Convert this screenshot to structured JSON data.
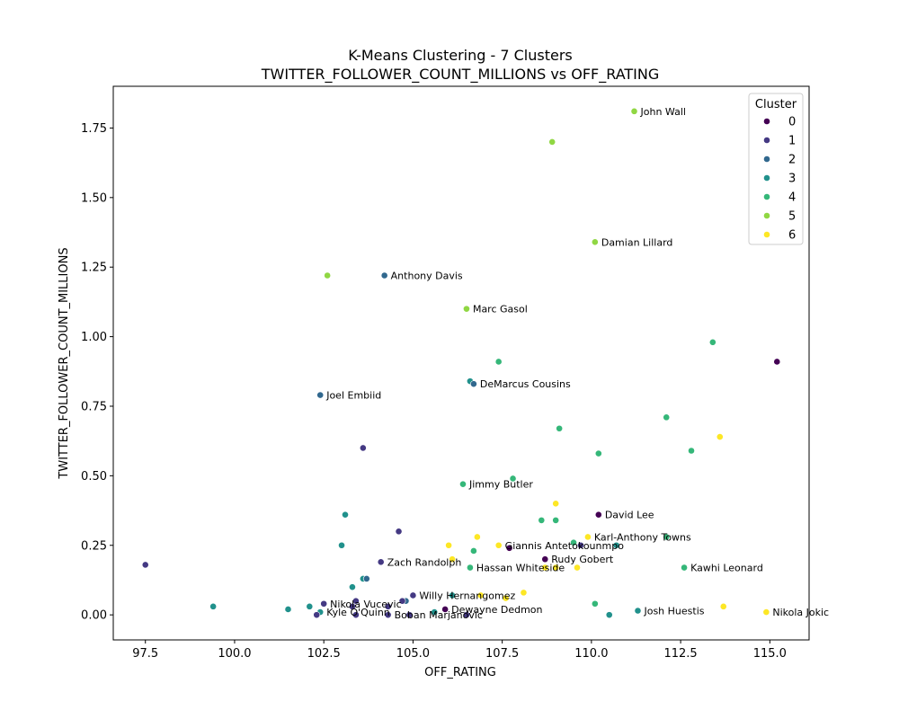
{
  "chart_data": {
    "type": "scatter",
    "title_line1": "K-Means Clustering - 7 Clusters",
    "title_line2": "TWITTER_FOLLOWER_COUNT_MILLIONS vs OFF_RATING",
    "xlabel": "OFF_RATING",
    "ylabel": "TWITTER_FOLLOWER_COUNT_MILLIONS",
    "xlim": [
      96.6,
      116.1
    ],
    "ylim": [
      -0.09,
      1.9
    ],
    "xticks": [
      97.5,
      100.0,
      102.5,
      105.0,
      107.5,
      110.0,
      112.5,
      115.0
    ],
    "xtick_labels": [
      "97.5",
      "100.0",
      "102.5",
      "105.0",
      "107.5",
      "110.0",
      "112.5",
      "115.0"
    ],
    "yticks": [
      0.0,
      0.25,
      0.5,
      0.75,
      1.0,
      1.25,
      1.5,
      1.75
    ],
    "ytick_labels": [
      "0.00",
      "0.25",
      "0.50",
      "0.75",
      "1.00",
      "1.25",
      "1.50",
      "1.75"
    ],
    "legend": {
      "title": "Cluster",
      "placement": "top-right",
      "entries": [
        {
          "label": "0",
          "color": "#440154"
        },
        {
          "label": "1",
          "color": "#443983"
        },
        {
          "label": "2",
          "color": "#31688e"
        },
        {
          "label": "3",
          "color": "#21918c"
        },
        {
          "label": "4",
          "color": "#35b779"
        },
        {
          "label": "5",
          "color": "#90d743"
        },
        {
          "label": "6",
          "color": "#fde725"
        }
      ]
    },
    "points": [
      {
        "x": 111.2,
        "y": 1.81,
        "cluster": 5,
        "label": "John Wall"
      },
      {
        "x": 108.9,
        "y": 1.7,
        "cluster": 5,
        "label": ""
      },
      {
        "x": 110.1,
        "y": 1.34,
        "cluster": 5,
        "label": "Damian Lillard"
      },
      {
        "x": 102.6,
        "y": 1.22,
        "cluster": 5,
        "label": ""
      },
      {
        "x": 104.2,
        "y": 1.22,
        "cluster": 2,
        "label": "Anthony Davis"
      },
      {
        "x": 106.5,
        "y": 1.1,
        "cluster": 5,
        "label": "Marc Gasol"
      },
      {
        "x": 113.4,
        "y": 0.98,
        "cluster": 4,
        "label": ""
      },
      {
        "x": 115.2,
        "y": 0.91,
        "cluster": 0,
        "label": ""
      },
      {
        "x": 107.4,
        "y": 0.91,
        "cluster": 4,
        "label": ""
      },
      {
        "x": 106.6,
        "y": 0.84,
        "cluster": 3,
        "label": ""
      },
      {
        "x": 106.7,
        "y": 0.83,
        "cluster": 2,
        "label": "DeMarcus Cousins"
      },
      {
        "x": 102.4,
        "y": 0.79,
        "cluster": 2,
        "label": "Joel Embiid"
      },
      {
        "x": 112.1,
        "y": 0.71,
        "cluster": 4,
        "label": ""
      },
      {
        "x": 109.1,
        "y": 0.67,
        "cluster": 4,
        "label": ""
      },
      {
        "x": 113.6,
        "y": 0.64,
        "cluster": 6,
        "label": ""
      },
      {
        "x": 103.6,
        "y": 0.6,
        "cluster": 1,
        "label": ""
      },
      {
        "x": 112.8,
        "y": 0.59,
        "cluster": 4,
        "label": ""
      },
      {
        "x": 110.2,
        "y": 0.58,
        "cluster": 4,
        "label": ""
      },
      {
        "x": 107.8,
        "y": 0.49,
        "cluster": 4,
        "label": ""
      },
      {
        "x": 106.4,
        "y": 0.47,
        "cluster": 4,
        "label": "Jimmy Butler"
      },
      {
        "x": 109.0,
        "y": 0.4,
        "cluster": 6,
        "label": ""
      },
      {
        "x": 103.1,
        "y": 0.36,
        "cluster": 3,
        "label": ""
      },
      {
        "x": 110.2,
        "y": 0.36,
        "cluster": 0,
        "label": "David Lee"
      },
      {
        "x": 108.6,
        "y": 0.34,
        "cluster": 4,
        "label": ""
      },
      {
        "x": 109.0,
        "y": 0.34,
        "cluster": 4,
        "label": ""
      },
      {
        "x": 104.6,
        "y": 0.3,
        "cluster": 1,
        "label": ""
      },
      {
        "x": 106.8,
        "y": 0.28,
        "cluster": 6,
        "label": ""
      },
      {
        "x": 109.9,
        "y": 0.28,
        "cluster": 6,
        "label": "Karl-Anthony Towns"
      },
      {
        "x": 112.1,
        "y": 0.28,
        "cluster": 4,
        "label": ""
      },
      {
        "x": 110.7,
        "y": 0.25,
        "cluster": 3,
        "label": ""
      },
      {
        "x": 109.5,
        "y": 0.26,
        "cluster": 4,
        "label": ""
      },
      {
        "x": 103.0,
        "y": 0.25,
        "cluster": 3,
        "label": ""
      },
      {
        "x": 106.0,
        "y": 0.25,
        "cluster": 6,
        "label": ""
      },
      {
        "x": 107.4,
        "y": 0.25,
        "cluster": 6,
        "label": "Giannis Antetokounmpo"
      },
      {
        "x": 109.7,
        "y": 0.25,
        "cluster": 1,
        "label": ""
      },
      {
        "x": 107.7,
        "y": 0.24,
        "cluster": 0,
        "label": ""
      },
      {
        "x": 106.7,
        "y": 0.23,
        "cluster": 4,
        "label": ""
      },
      {
        "x": 108.7,
        "y": 0.2,
        "cluster": 0,
        "label": "Rudy Gobert"
      },
      {
        "x": 97.5,
        "y": 0.18,
        "cluster": 1,
        "label": ""
      },
      {
        "x": 104.1,
        "y": 0.19,
        "cluster": 1,
        "label": "Zach Randolph"
      },
      {
        "x": 106.1,
        "y": 0.2,
        "cluster": 6,
        "label": ""
      },
      {
        "x": 106.6,
        "y": 0.17,
        "cluster": 4,
        "label": "Hassan Whiteside"
      },
      {
        "x": 108.7,
        "y": 0.17,
        "cluster": 6,
        "label": ""
      },
      {
        "x": 109.0,
        "y": 0.17,
        "cluster": 6,
        "label": ""
      },
      {
        "x": 109.6,
        "y": 0.17,
        "cluster": 6,
        "label": ""
      },
      {
        "x": 112.6,
        "y": 0.17,
        "cluster": 4,
        "label": "Kawhi Leonard"
      },
      {
        "x": 103.6,
        "y": 0.13,
        "cluster": 3,
        "label": ""
      },
      {
        "x": 103.7,
        "y": 0.13,
        "cluster": 2,
        "label": ""
      },
      {
        "x": 103.3,
        "y": 0.1,
        "cluster": 3,
        "label": ""
      },
      {
        "x": 108.1,
        "y": 0.08,
        "cluster": 6,
        "label": ""
      },
      {
        "x": 106.1,
        "y": 0.07,
        "cluster": 3,
        "label": ""
      },
      {
        "x": 105.0,
        "y": 0.07,
        "cluster": 1,
        "label": "Willy Hernangomez"
      },
      {
        "x": 106.9,
        "y": 0.07,
        "cluster": 6,
        "label": ""
      },
      {
        "x": 107.6,
        "y": 0.06,
        "cluster": 6,
        "label": ""
      },
      {
        "x": 104.8,
        "y": 0.05,
        "cluster": 2,
        "label": ""
      },
      {
        "x": 104.7,
        "y": 0.05,
        "cluster": 1,
        "label": ""
      },
      {
        "x": 103.4,
        "y": 0.05,
        "cluster": 1,
        "label": ""
      },
      {
        "x": 102.5,
        "y": 0.04,
        "cluster": 1,
        "label": "Nikola Vucevic"
      },
      {
        "x": 110.1,
        "y": 0.04,
        "cluster": 4,
        "label": ""
      },
      {
        "x": 99.4,
        "y": 0.03,
        "cluster": 3,
        "label": ""
      },
      {
        "x": 102.1,
        "y": 0.03,
        "cluster": 3,
        "label": ""
      },
      {
        "x": 103.3,
        "y": 0.03,
        "cluster": 1,
        "label": ""
      },
      {
        "x": 104.3,
        "y": 0.03,
        "cluster": 1,
        "label": ""
      },
      {
        "x": 113.7,
        "y": 0.03,
        "cluster": 6,
        "label": ""
      },
      {
        "x": 101.5,
        "y": 0.02,
        "cluster": 3,
        "label": ""
      },
      {
        "x": 102.4,
        "y": 0.01,
        "cluster": 3,
        "label": "Kyle O'Quinn"
      },
      {
        "x": 105.9,
        "y": 0.02,
        "cluster": 0,
        "label": "Dewayne Dedmon"
      },
      {
        "x": 105.6,
        "y": 0.01,
        "cluster": 3,
        "label": ""
      },
      {
        "x": 111.3,
        "y": 0.015,
        "cluster": 3,
        "label": "Josh Huestis"
      },
      {
        "x": 114.9,
        "y": 0.01,
        "cluster": 6,
        "label": "Nikola Jokic"
      },
      {
        "x": 102.3,
        "y": 0.0,
        "cluster": 1,
        "label": ""
      },
      {
        "x": 103.4,
        "y": 0.0,
        "cluster": 1,
        "label": ""
      },
      {
        "x": 104.3,
        "y": 0.0,
        "cluster": 1,
        "label": "Boban Marjanovic"
      },
      {
        "x": 104.9,
        "y": 0.0,
        "cluster": 1,
        "label": ""
      },
      {
        "x": 106.5,
        "y": 0.0,
        "cluster": 1,
        "label": ""
      },
      {
        "x": 110.5,
        "y": 0.0,
        "cluster": 3,
        "label": ""
      }
    ]
  }
}
